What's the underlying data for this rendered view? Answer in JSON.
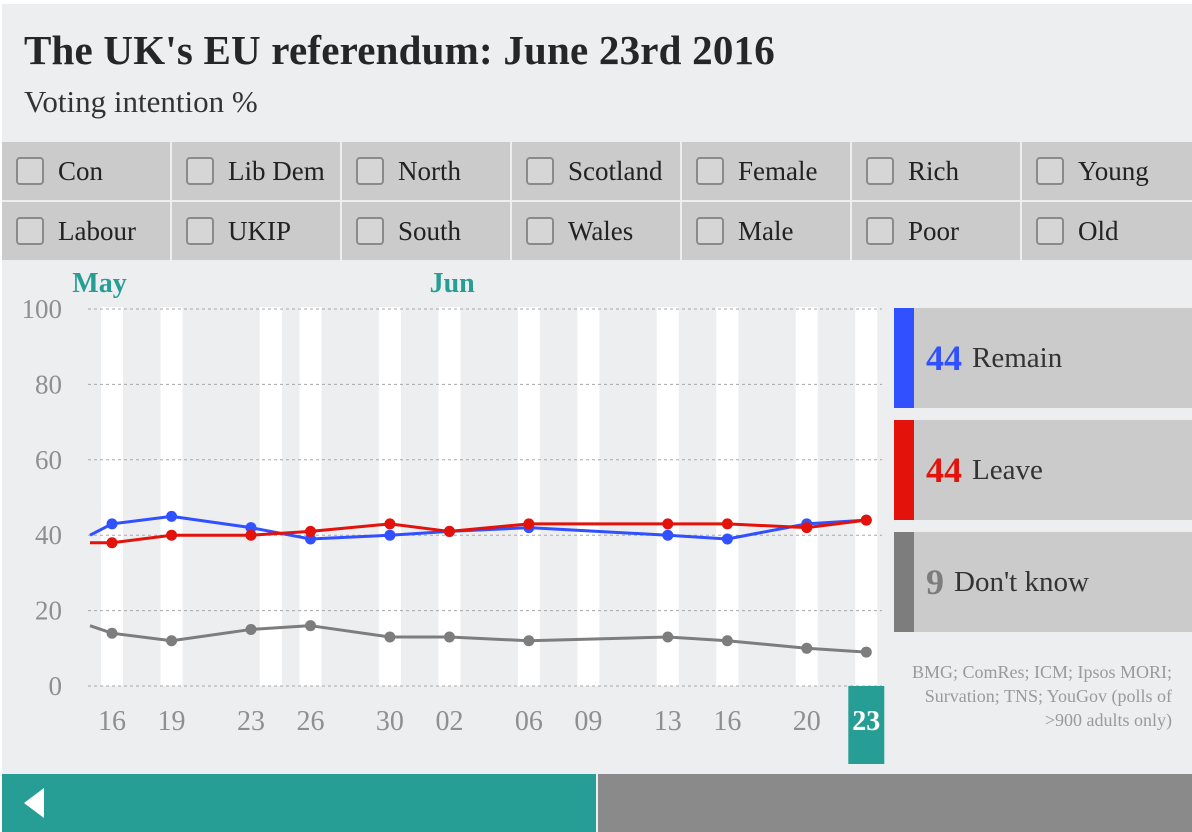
{
  "header": {
    "title": "The UK's EU referendum: June 23rd 2016",
    "subtitle": "Voting intention %"
  },
  "filters": [
    [
      "Con",
      "Lib Dem",
      "North",
      "Scotland",
      "Female",
      "Rich",
      "Young"
    ],
    [
      "Labour",
      "UKIP",
      "South",
      "Wales",
      "Male",
      "Poor",
      "Old"
    ]
  ],
  "legend": [
    {
      "value": "44",
      "label": "Remain",
      "color": "#3150ff"
    },
    {
      "value": "44",
      "label": "Leave",
      "color": "#e3120b"
    },
    {
      "value": "9",
      "label": "Don't know",
      "color": "#7d7d7d"
    }
  ],
  "source": "BMG; ComRes; ICM; Ipsos MORI; Survation; TNS; YouGov (polls of >900 adults only)",
  "chart_data": {
    "type": "line",
    "title": "The UK's EU referendum: June 23rd 2016",
    "ylabel": "Voting intention %",
    "ylim": [
      0,
      100
    ],
    "yticks": [
      0,
      20,
      40,
      60,
      80,
      100
    ],
    "grid": true,
    "month_labels": [
      {
        "label": "May",
        "day": 14
      },
      {
        "label": "Jun",
        "day": 32
      }
    ],
    "month_label_color": "#279e95",
    "x_range": [
      13,
      54
    ],
    "ticks": [
      {
        "label": "16",
        "day": 16
      },
      {
        "label": "19",
        "day": 19
      },
      {
        "label": "23",
        "day": 23
      },
      {
        "label": "26",
        "day": 26
      },
      {
        "label": "30",
        "day": 30
      },
      {
        "label": "02",
        "day": 33
      },
      {
        "label": "06",
        "day": 37
      },
      {
        "label": "09",
        "day": 40
      },
      {
        "label": "13",
        "day": 44
      },
      {
        "label": "16",
        "day": 47
      },
      {
        "label": "20",
        "day": 51
      },
      {
        "label": "23",
        "day": 54,
        "highlight": true
      }
    ],
    "highlight_color": "#279e95",
    "stripe_days": [
      16,
      19,
      24,
      26,
      30,
      33,
      37,
      40,
      44,
      47,
      51,
      54
    ],
    "series": [
      {
        "name": "Remain",
        "color": "#3150ff",
        "start": 40,
        "x": [
          16,
          19,
          23,
          26,
          30,
          33,
          37,
          44,
          47,
          51,
          54
        ],
        "values": [
          43,
          45,
          42,
          39,
          40,
          41,
          42,
          40,
          39,
          43,
          44
        ]
      },
      {
        "name": "Leave",
        "color": "#e3120b",
        "start": 38,
        "x": [
          16,
          19,
          23,
          26,
          30,
          33,
          37,
          44,
          47,
          51,
          54
        ],
        "values": [
          38,
          40,
          40,
          41,
          43,
          41,
          43,
          43,
          43,
          42,
          44
        ]
      },
      {
        "name": "Don't know",
        "color": "#7d7d7d",
        "start": 16,
        "x": [
          16,
          19,
          23,
          26,
          30,
          33,
          37,
          44,
          47,
          51,
          54
        ],
        "values": [
          14,
          12,
          15,
          16,
          13,
          13,
          12,
          13,
          12,
          10,
          9
        ]
      }
    ]
  }
}
